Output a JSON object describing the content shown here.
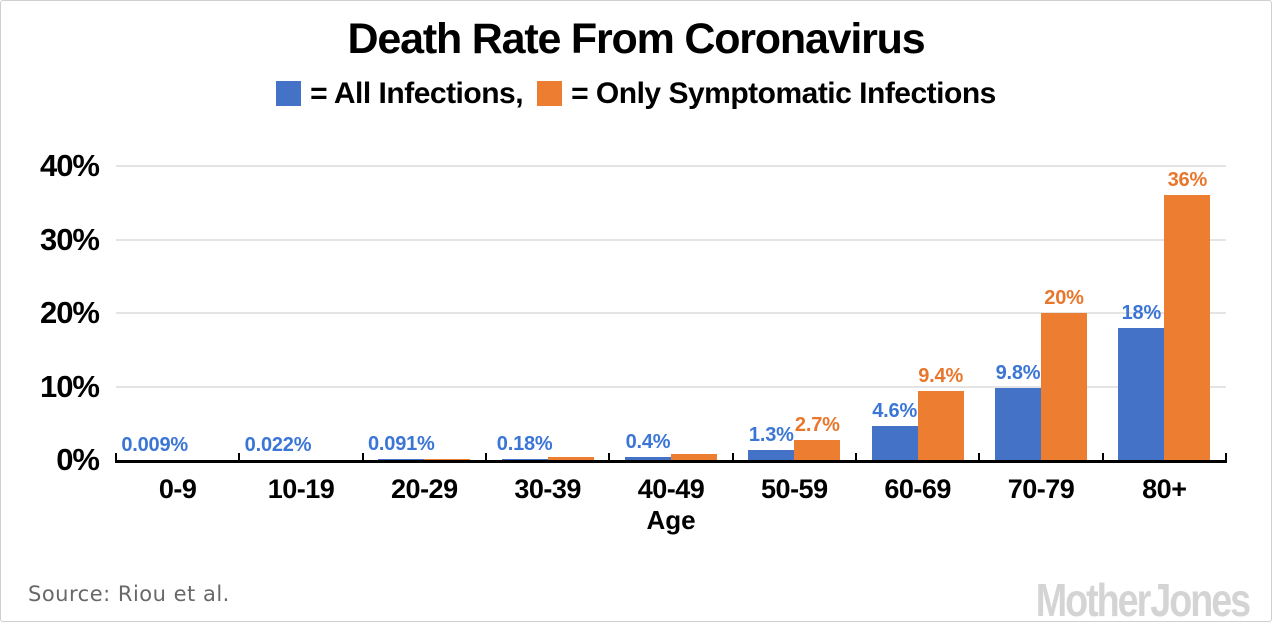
{
  "title": "Death Rate From Coronavirus",
  "legend": {
    "all_label": "= All Infections,",
    "symptomatic_label": "= Only Symptomatic Infections"
  },
  "source": "Source: Riou et al.",
  "logo": "Mother Jones",
  "colors": {
    "all_infections_bar": "#4472c6",
    "symptomatic_bar": "#ed7d31",
    "all_infections_label": "#3b76d6",
    "symptomatic_label": "#e8772d",
    "gridline": "#e4e4e4",
    "axis": "#000000",
    "title_text": "#000000",
    "source_text": "#686868",
    "logo_text": "#d4d4d4"
  },
  "chart_data": {
    "type": "bar",
    "title": "Death Rate From Coronavirus",
    "xlabel": "Age",
    "ylabel": "",
    "ylim": [
      0,
      40
    ],
    "grid": true,
    "legend_position": "top",
    "categories": [
      "0-9",
      "10-19",
      "20-29",
      "30-39",
      "40-49",
      "50-59",
      "60-69",
      "70-79",
      "80+"
    ],
    "yticks": [
      {
        "value": 0,
        "label": "0%"
      },
      {
        "value": 10,
        "label": "10%"
      },
      {
        "value": 20,
        "label": "20%"
      },
      {
        "value": 30,
        "label": "30%"
      },
      {
        "value": 40,
        "label": "40%"
      }
    ],
    "series": [
      {
        "name": "All Infections",
        "values": [
          0.009,
          0.022,
          0.091,
          0.18,
          0.4,
          1.3,
          4.6,
          9.8,
          18
        ],
        "labels": [
          "0.009%",
          "0.022%",
          "0.091%",
          "0.18%",
          "0.4%",
          "1.3%",
          "4.6%",
          "9.8%",
          "18%"
        ]
      },
      {
        "name": "Only Symptomatic Infections",
        "values": [
          0.02,
          0.04,
          0.18,
          0.4,
          0.8,
          2.7,
          9.4,
          20,
          36
        ],
        "labels": [
          "",
          "",
          "",
          "",
          "",
          "2.7%",
          "9.4%",
          "20%",
          "36%"
        ]
      }
    ]
  }
}
